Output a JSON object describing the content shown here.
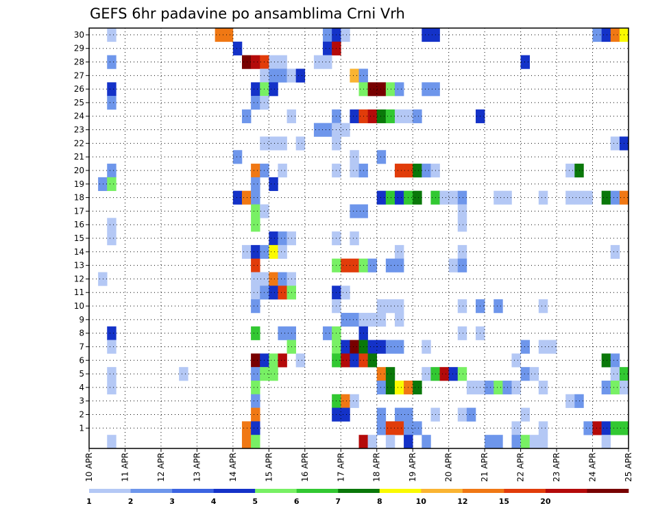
{
  "chart_data": {
    "type": "heatmap",
    "title": "GEFS 6hr padavine po ansamblima Crni Vrh",
    "xlabel": "",
    "ylabel": "",
    "x_ticks": [
      "10 APR",
      "11 APR",
      "12 APR",
      "13 APR",
      "14 APR",
      "15 APR",
      "16 APR",
      "17 APR",
      "18 APR",
      "19 APR",
      "20 APR",
      "21 APR",
      "22 APR",
      "23 APR",
      "24 APR",
      "25 APR"
    ],
    "y_ticks": [
      1,
      2,
      3,
      4,
      5,
      6,
      7,
      8,
      9,
      10,
      11,
      12,
      13,
      14,
      15,
      16,
      17,
      18,
      19,
      20,
      21,
      22,
      23,
      24,
      25,
      26,
      27,
      28,
      29,
      30
    ],
    "n_members": 31,
    "n_steps": 60,
    "grid": true,
    "legend_placement": "bottom",
    "colorbar": {
      "levels": [
        "1",
        "2",
        "3",
        "4",
        "5",
        "6",
        "7",
        "8",
        "10",
        "12",
        "15",
        "20"
      ],
      "colors": [
        "#b4c8f5",
        "#6e96eb",
        "#3c64e1",
        "#1432c8",
        "#78f064",
        "#32c832",
        "#0a780a",
        "#fafa00",
        "#fab432",
        "#f07814",
        "#e13c0a",
        "#b40a0a",
        "#780000"
      ]
    },
    "cells": [
      {
        "m": 30,
        "s": 3,
        "c": 1
      },
      {
        "m": 30,
        "s": 15,
        "c": 10
      },
      {
        "m": 30,
        "s": 16,
        "c": 10
      },
      {
        "m": 30,
        "s": 27,
        "c": 2
      },
      {
        "m": 30,
        "s": 28,
        "c": 4
      },
      {
        "m": 30,
        "s": 29,
        "c": 1
      },
      {
        "m": 30,
        "s": 38,
        "c": 4
      },
      {
        "m": 30,
        "s": 39,
        "c": 4
      },
      {
        "m": 30,
        "s": 57,
        "c": 2
      },
      {
        "m": 30,
        "s": 58,
        "c": 4
      },
      {
        "m": 30,
        "s": 59,
        "c": 10
      },
      {
        "m": 30,
        "s": 60,
        "c": 8
      },
      {
        "m": 29,
        "s": 17,
        "c": 4
      },
      {
        "m": 29,
        "s": 27,
        "c": 4
      },
      {
        "m": 29,
        "s": 28,
        "c": 12
      },
      {
        "m": 28,
        "s": 3,
        "c": 2
      },
      {
        "m": 28,
        "s": 18,
        "c": 13
      },
      {
        "m": 28,
        "s": 19,
        "c": 12
      },
      {
        "m": 28,
        "s": 20,
        "c": 11
      },
      {
        "m": 28,
        "s": 21,
        "c": 1
      },
      {
        "m": 28,
        "s": 22,
        "c": 1
      },
      {
        "m": 28,
        "s": 26,
        "c": 1
      },
      {
        "m": 28,
        "s": 27,
        "c": 1
      },
      {
        "m": 28,
        "s": 49,
        "c": 4
      },
      {
        "m": 27,
        "s": 20,
        "c": 1
      },
      {
        "m": 27,
        "s": 21,
        "c": 2
      },
      {
        "m": 27,
        "s": 22,
        "c": 2
      },
      {
        "m": 27,
        "s": 23,
        "c": 1
      },
      {
        "m": 27,
        "s": 24,
        "c": 4
      },
      {
        "m": 27,
        "s": 30,
        "c": 9
      },
      {
        "m": 27,
        "s": 31,
        "c": 2
      },
      {
        "m": 26,
        "s": 3,
        "c": 4
      },
      {
        "m": 26,
        "s": 19,
        "c": 4
      },
      {
        "m": 26,
        "s": 20,
        "c": 5
      },
      {
        "m": 26,
        "s": 21,
        "c": 4
      },
      {
        "m": 26,
        "s": 31,
        "c": 5
      },
      {
        "m": 26,
        "s": 32,
        "c": 13
      },
      {
        "m": 26,
        "s": 33,
        "c": 13
      },
      {
        "m": 26,
        "s": 34,
        "c": 5
      },
      {
        "m": 26,
        "s": 35,
        "c": 2
      },
      {
        "m": 26,
        "s": 38,
        "c": 2
      },
      {
        "m": 26,
        "s": 39,
        "c": 2
      },
      {
        "m": 25,
        "s": 3,
        "c": 2
      },
      {
        "m": 25,
        "s": 19,
        "c": 2
      },
      {
        "m": 25,
        "s": 20,
        "c": 1
      },
      {
        "m": 24,
        "s": 18,
        "c": 2
      },
      {
        "m": 24,
        "s": 23,
        "c": 1
      },
      {
        "m": 24,
        "s": 28,
        "c": 2
      },
      {
        "m": 24,
        "s": 30,
        "c": 4
      },
      {
        "m": 24,
        "s": 31,
        "c": 11
      },
      {
        "m": 24,
        "s": 32,
        "c": 12
      },
      {
        "m": 24,
        "s": 33,
        "c": 7
      },
      {
        "m": 24,
        "s": 34,
        "c": 6
      },
      {
        "m": 24,
        "s": 35,
        "c": 1
      },
      {
        "m": 24,
        "s": 36,
        "c": 1
      },
      {
        "m": 24,
        "s": 37,
        "c": 2
      },
      {
        "m": 24,
        "s": 44,
        "c": 4
      },
      {
        "m": 23,
        "s": 26,
        "c": 2
      },
      {
        "m": 23,
        "s": 27,
        "c": 2
      },
      {
        "m": 23,
        "s": 28,
        "c": 1
      },
      {
        "m": 23,
        "s": 29,
        "c": 1
      },
      {
        "m": 22,
        "s": 20,
        "c": 1
      },
      {
        "m": 22,
        "s": 21,
        "c": 1
      },
      {
        "m": 22,
        "s": 22,
        "c": 1
      },
      {
        "m": 22,
        "s": 24,
        "c": 1
      },
      {
        "m": 22,
        "s": 28,
        "c": 1
      },
      {
        "m": 22,
        "s": 59,
        "c": 1
      },
      {
        "m": 22,
        "s": 60,
        "c": 4
      },
      {
        "m": 21,
        "s": 17,
        "c": 2
      },
      {
        "m": 21,
        "s": 30,
        "c": 1
      },
      {
        "m": 21,
        "s": 33,
        "c": 2
      },
      {
        "m": 20,
        "s": 3,
        "c": 2
      },
      {
        "m": 20,
        "s": 19,
        "c": 10
      },
      {
        "m": 20,
        "s": 20,
        "c": 2
      },
      {
        "m": 20,
        "s": 22,
        "c": 1
      },
      {
        "m": 20,
        "s": 28,
        "c": 1
      },
      {
        "m": 20,
        "s": 30,
        "c": 1
      },
      {
        "m": 20,
        "s": 31,
        "c": 2
      },
      {
        "m": 20,
        "s": 35,
        "c": 11
      },
      {
        "m": 20,
        "s": 36,
        "c": 11
      },
      {
        "m": 20,
        "s": 37,
        "c": 7
      },
      {
        "m": 20,
        "s": 38,
        "c": 2
      },
      {
        "m": 20,
        "s": 39,
        "c": 1
      },
      {
        "m": 20,
        "s": 54,
        "c": 1
      },
      {
        "m": 20,
        "s": 55,
        "c": 7
      },
      {
        "m": 19,
        "s": 2,
        "c": 2
      },
      {
        "m": 19,
        "s": 3,
        "c": 5
      },
      {
        "m": 19,
        "s": 19,
        "c": 2
      },
      {
        "m": 19,
        "s": 21,
        "c": 4
      },
      {
        "m": 18,
        "s": 17,
        "c": 4
      },
      {
        "m": 18,
        "s": 18,
        "c": 10
      },
      {
        "m": 18,
        "s": 19,
        "c": 2
      },
      {
        "m": 18,
        "s": 33,
        "c": 4
      },
      {
        "m": 18,
        "s": 34,
        "c": 6
      },
      {
        "m": 18,
        "s": 35,
        "c": 4
      },
      {
        "m": 18,
        "s": 36,
        "c": 6
      },
      {
        "m": 18,
        "s": 37,
        "c": 7
      },
      {
        "m": 18,
        "s": 39,
        "c": 6
      },
      {
        "m": 18,
        "s": 40,
        "c": 1
      },
      {
        "m": 18,
        "s": 41,
        "c": 1
      },
      {
        "m": 18,
        "s": 42,
        "c": 2
      },
      {
        "m": 18,
        "s": 46,
        "c": 1
      },
      {
        "m": 18,
        "s": 47,
        "c": 1
      },
      {
        "m": 18,
        "s": 51,
        "c": 1
      },
      {
        "m": 18,
        "s": 54,
        "c": 1
      },
      {
        "m": 18,
        "s": 55,
        "c": 1
      },
      {
        "m": 18,
        "s": 56,
        "c": 1
      },
      {
        "m": 18,
        "s": 58,
        "c": 7
      },
      {
        "m": 18,
        "s": 59,
        "c": 2
      },
      {
        "m": 18,
        "s": 60,
        "c": 10
      },
      {
        "m": 17,
        "s": 19,
        "c": 5
      },
      {
        "m": 17,
        "s": 20,
        "c": 1
      },
      {
        "m": 17,
        "s": 30,
        "c": 2
      },
      {
        "m": 17,
        "s": 31,
        "c": 2
      },
      {
        "m": 17,
        "s": 42,
        "c": 1
      },
      {
        "m": 16,
        "s": 3,
        "c": 1
      },
      {
        "m": 16,
        "s": 19,
        "c": 5
      },
      {
        "m": 16,
        "s": 42,
        "c": 1
      },
      {
        "m": 15,
        "s": 3,
        "c": 1
      },
      {
        "m": 15,
        "s": 21,
        "c": 4
      },
      {
        "m": 15,
        "s": 22,
        "c": 2
      },
      {
        "m": 15,
        "s": 23,
        "c": 1
      },
      {
        "m": 15,
        "s": 28,
        "c": 1
      },
      {
        "m": 15,
        "s": 30,
        "c": 1
      },
      {
        "m": 14,
        "s": 18,
        "c": 1
      },
      {
        "m": 14,
        "s": 19,
        "c": 4
      },
      {
        "m": 14,
        "s": 20,
        "c": 2
      },
      {
        "m": 14,
        "s": 21,
        "c": 8
      },
      {
        "m": 14,
        "s": 22,
        "c": 1
      },
      {
        "m": 14,
        "s": 35,
        "c": 1
      },
      {
        "m": 14,
        "s": 42,
        "c": 1
      },
      {
        "m": 14,
        "s": 59,
        "c": 1
      },
      {
        "m": 13,
        "s": 19,
        "c": 11
      },
      {
        "m": 13,
        "s": 28,
        "c": 5
      },
      {
        "m": 13,
        "s": 29,
        "c": 11
      },
      {
        "m": 13,
        "s": 30,
        "c": 11
      },
      {
        "m": 13,
        "s": 31,
        "c": 5
      },
      {
        "m": 13,
        "s": 32,
        "c": 2
      },
      {
        "m": 13,
        "s": 34,
        "c": 2
      },
      {
        "m": 13,
        "s": 35,
        "c": 2
      },
      {
        "m": 13,
        "s": 41,
        "c": 1
      },
      {
        "m": 13,
        "s": 42,
        "c": 2
      },
      {
        "m": 12,
        "s": 2,
        "c": 1
      },
      {
        "m": 12,
        "s": 19,
        "c": 1
      },
      {
        "m": 12,
        "s": 20,
        "c": 1
      },
      {
        "m": 12,
        "s": 21,
        "c": 10
      },
      {
        "m": 12,
        "s": 22,
        "c": 2
      },
      {
        "m": 12,
        "s": 23,
        "c": 1
      },
      {
        "m": 11,
        "s": 19,
        "c": 1
      },
      {
        "m": 11,
        "s": 20,
        "c": 2
      },
      {
        "m": 11,
        "s": 21,
        "c": 4
      },
      {
        "m": 11,
        "s": 22,
        "c": 11
      },
      {
        "m": 11,
        "s": 23,
        "c": 5
      },
      {
        "m": 11,
        "s": 28,
        "c": 4
      },
      {
        "m": 11,
        "s": 29,
        "c": 1
      },
      {
        "m": 10,
        "s": 19,
        "c": 2
      },
      {
        "m": 10,
        "s": 28,
        "c": 1
      },
      {
        "m": 10,
        "s": 33,
        "c": 1
      },
      {
        "m": 10,
        "s": 34,
        "c": 1
      },
      {
        "m": 10,
        "s": 35,
        "c": 1
      },
      {
        "m": 10,
        "s": 42,
        "c": 1
      },
      {
        "m": 10,
        "s": 44,
        "c": 2
      },
      {
        "m": 10,
        "s": 46,
        "c": 2
      },
      {
        "m": 10,
        "s": 51,
        "c": 1
      },
      {
        "m": 9,
        "s": 29,
        "c": 2
      },
      {
        "m": 9,
        "s": 30,
        "c": 2
      },
      {
        "m": 9,
        "s": 31,
        "c": 1
      },
      {
        "m": 9,
        "s": 32,
        "c": 1
      },
      {
        "m": 9,
        "s": 33,
        "c": 1
      },
      {
        "m": 9,
        "s": 35,
        "c": 1
      },
      {
        "m": 8,
        "s": 3,
        "c": 4
      },
      {
        "m": 8,
        "s": 19,
        "c": 6
      },
      {
        "m": 8,
        "s": 22,
        "c": 2
      },
      {
        "m": 8,
        "s": 23,
        "c": 2
      },
      {
        "m": 8,
        "s": 27,
        "c": 2
      },
      {
        "m": 8,
        "s": 28,
        "c": 5
      },
      {
        "m": 8,
        "s": 31,
        "c": 4
      },
      {
        "m": 8,
        "s": 42,
        "c": 1
      },
      {
        "m": 8,
        "s": 44,
        "c": 1
      },
      {
        "m": 7,
        "s": 3,
        "c": 1
      },
      {
        "m": 7,
        "s": 23,
        "c": 5
      },
      {
        "m": 7,
        "s": 28,
        "c": 5
      },
      {
        "m": 7,
        "s": 29,
        "c": 4
      },
      {
        "m": 7,
        "s": 30,
        "c": 13
      },
      {
        "m": 7,
        "s": 31,
        "c": 7
      },
      {
        "m": 7,
        "s": 32,
        "c": 4
      },
      {
        "m": 7,
        "s": 33,
        "c": 4
      },
      {
        "m": 7,
        "s": 34,
        "c": 2
      },
      {
        "m": 7,
        "s": 35,
        "c": 2
      },
      {
        "m": 7,
        "s": 38,
        "c": 1
      },
      {
        "m": 7,
        "s": 49,
        "c": 2
      },
      {
        "m": 7,
        "s": 51,
        "c": 1
      },
      {
        "m": 7,
        "s": 52,
        "c": 1
      },
      {
        "m": 6,
        "s": 19,
        "c": 13
      },
      {
        "m": 6,
        "s": 20,
        "c": 4
      },
      {
        "m": 6,
        "s": 21,
        "c": 5
      },
      {
        "m": 6,
        "s": 22,
        "c": 12
      },
      {
        "m": 6,
        "s": 24,
        "c": 1
      },
      {
        "m": 6,
        "s": 28,
        "c": 6
      },
      {
        "m": 6,
        "s": 29,
        "c": 12
      },
      {
        "m": 6,
        "s": 30,
        "c": 4
      },
      {
        "m": 6,
        "s": 31,
        "c": 11
      },
      {
        "m": 6,
        "s": 32,
        "c": 7
      },
      {
        "m": 6,
        "s": 48,
        "c": 1
      },
      {
        "m": 6,
        "s": 58,
        "c": 7
      },
      {
        "m": 6,
        "s": 59,
        "c": 2
      },
      {
        "m": 5,
        "s": 3,
        "c": 1
      },
      {
        "m": 5,
        "s": 11,
        "c": 1
      },
      {
        "m": 5,
        "s": 19,
        "c": 2
      },
      {
        "m": 5,
        "s": 20,
        "c": 5
      },
      {
        "m": 5,
        "s": 21,
        "c": 5
      },
      {
        "m": 5,
        "s": 33,
        "c": 10
      },
      {
        "m": 5,
        "s": 34,
        "c": 7
      },
      {
        "m": 5,
        "s": 38,
        "c": 1
      },
      {
        "m": 5,
        "s": 39,
        "c": 6
      },
      {
        "m": 5,
        "s": 40,
        "c": 12
      },
      {
        "m": 5,
        "s": 41,
        "c": 4
      },
      {
        "m": 5,
        "s": 42,
        "c": 5
      },
      {
        "m": 5,
        "s": 49,
        "c": 2
      },
      {
        "m": 5,
        "s": 50,
        "c": 1
      },
      {
        "m": 5,
        "s": 59,
        "c": 1
      },
      {
        "m": 5,
        "s": 60,
        "c": 6
      },
      {
        "m": 4,
        "s": 3,
        "c": 1
      },
      {
        "m": 4,
        "s": 19,
        "c": 5
      },
      {
        "m": 4,
        "s": 33,
        "c": 2
      },
      {
        "m": 4,
        "s": 34,
        "c": 7
      },
      {
        "m": 4,
        "s": 35,
        "c": 8
      },
      {
        "m": 4,
        "s": 36,
        "c": 10
      },
      {
        "m": 4,
        "s": 37,
        "c": 7
      },
      {
        "m": 4,
        "s": 43,
        "c": 1
      },
      {
        "m": 4,
        "s": 44,
        "c": 1
      },
      {
        "m": 4,
        "s": 45,
        "c": 2
      },
      {
        "m": 4,
        "s": 46,
        "c": 5
      },
      {
        "m": 4,
        "s": 47,
        "c": 2
      },
      {
        "m": 4,
        "s": 48,
        "c": 1
      },
      {
        "m": 4,
        "s": 51,
        "c": 1
      },
      {
        "m": 4,
        "s": 58,
        "c": 2
      },
      {
        "m": 4,
        "s": 59,
        "c": 5
      },
      {
        "m": 4,
        "s": 60,
        "c": 1
      },
      {
        "m": 3,
        "s": 19,
        "c": 2
      },
      {
        "m": 3,
        "s": 28,
        "c": 6
      },
      {
        "m": 3,
        "s": 29,
        "c": 10
      },
      {
        "m": 3,
        "s": 30,
        "c": 1
      },
      {
        "m": 3,
        "s": 54,
        "c": 1
      },
      {
        "m": 3,
        "s": 55,
        "c": 2
      },
      {
        "m": 2,
        "s": 19,
        "c": 10
      },
      {
        "m": 2,
        "s": 28,
        "c": 4
      },
      {
        "m": 2,
        "s": 29,
        "c": 4
      },
      {
        "m": 2,
        "s": 33,
        "c": 2
      },
      {
        "m": 2,
        "s": 35,
        "c": 2
      },
      {
        "m": 2,
        "s": 36,
        "c": 2
      },
      {
        "m": 2,
        "s": 39,
        "c": 1
      },
      {
        "m": 2,
        "s": 42,
        "c": 1
      },
      {
        "m": 2,
        "s": 43,
        "c": 2
      },
      {
        "m": 2,
        "s": 49,
        "c": 1
      },
      {
        "m": 1,
        "s": 18,
        "c": 10
      },
      {
        "m": 1,
        "s": 19,
        "c": 4
      },
      {
        "m": 1,
        "s": 33,
        "c": 2
      },
      {
        "m": 1,
        "s": 34,
        "c": 11
      },
      {
        "m": 1,
        "s": 35,
        "c": 11
      },
      {
        "m": 1,
        "s": 36,
        "c": 2
      },
      {
        "m": 1,
        "s": 37,
        "c": 2
      },
      {
        "m": 1,
        "s": 48,
        "c": 1
      },
      {
        "m": 1,
        "s": 51,
        "c": 1
      },
      {
        "m": 1,
        "s": 56,
        "c": 2
      },
      {
        "m": 1,
        "s": 57,
        "c": 12
      },
      {
        "m": 1,
        "s": 58,
        "c": 4
      },
      {
        "m": 1,
        "s": 59,
        "c": 6
      },
      {
        "m": 1,
        "s": 60,
        "c": 6
      },
      {
        "m": 0,
        "s": 3,
        "c": 1
      },
      {
        "m": 0,
        "s": 18,
        "c": 10
      },
      {
        "m": 0,
        "s": 19,
        "c": 5
      },
      {
        "m": 0,
        "s": 31,
        "c": 12
      },
      {
        "m": 0,
        "s": 32,
        "c": 1
      },
      {
        "m": 0,
        "s": 34,
        "c": 1
      },
      {
        "m": 0,
        "s": 36,
        "c": 4
      },
      {
        "m": 0,
        "s": 38,
        "c": 2
      },
      {
        "m": 0,
        "s": 45,
        "c": 2
      },
      {
        "m": 0,
        "s": 46,
        "c": 2
      },
      {
        "m": 0,
        "s": 48,
        "c": 2
      },
      {
        "m": 0,
        "s": 49,
        "c": 5
      },
      {
        "m": 0,
        "s": 50,
        "c": 1
      },
      {
        "m": 0,
        "s": 51,
        "c": 1
      },
      {
        "m": 0,
        "s": 58,
        "c": 1
      }
    ]
  }
}
